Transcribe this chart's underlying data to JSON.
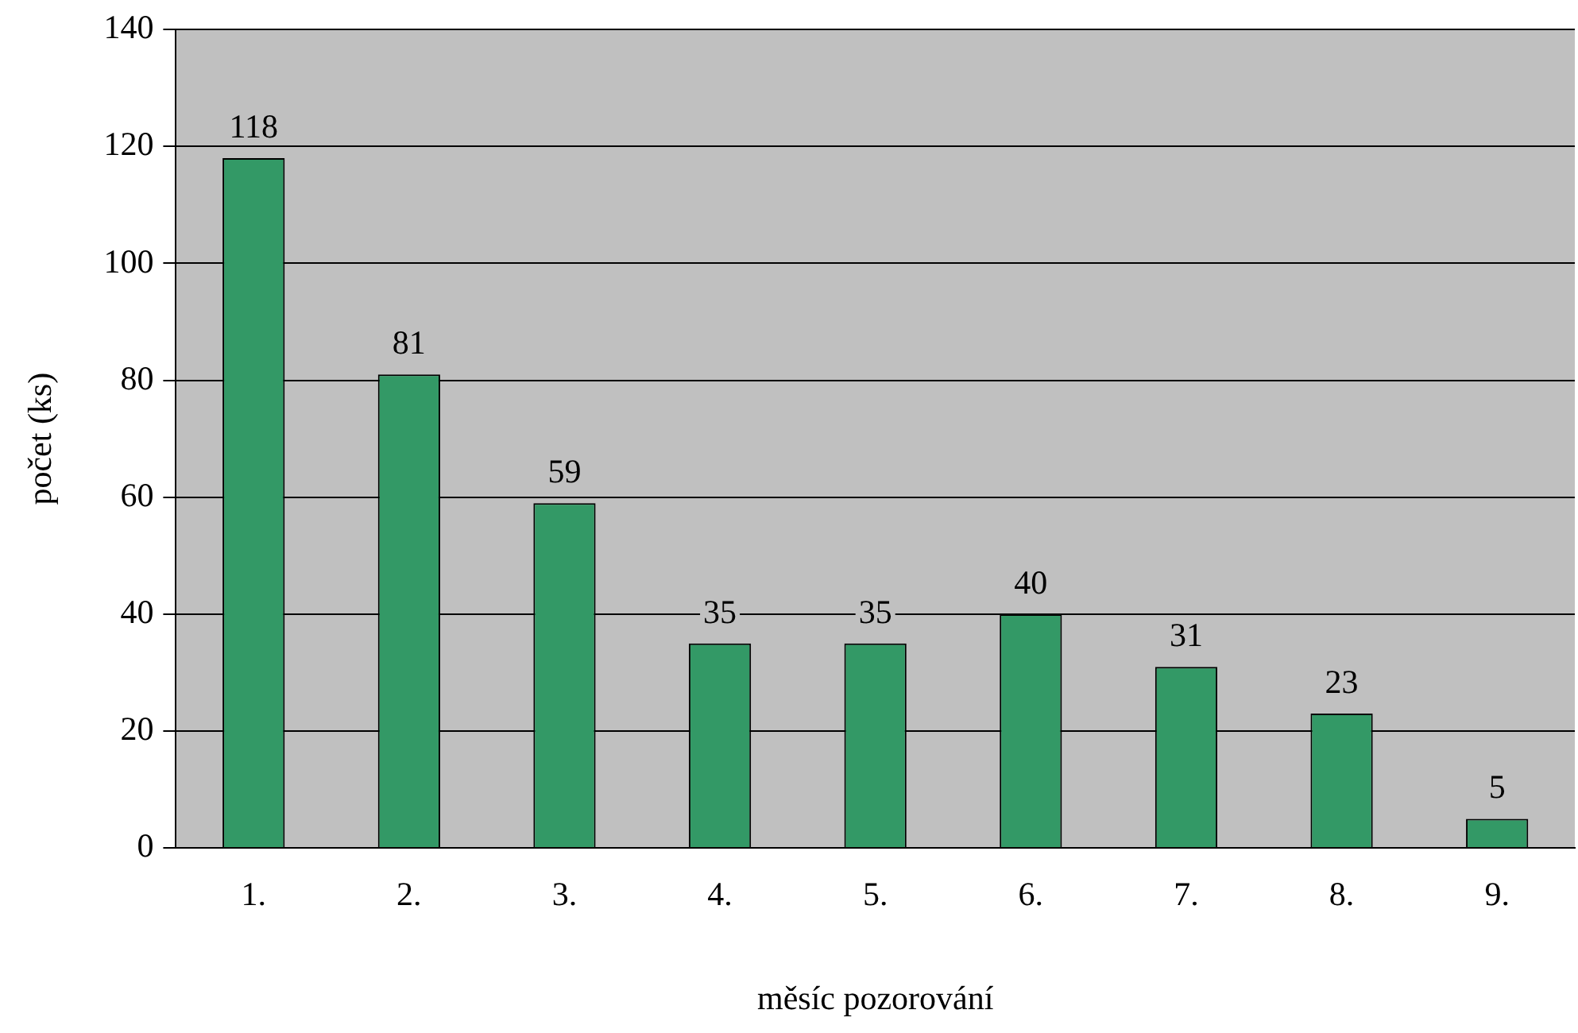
{
  "chart_data": {
    "type": "bar",
    "xlabel": "měsíc pozorování",
    "ylabel": "počet (ks)",
    "categories": [
      "1.",
      "2.",
      "3.",
      "4.",
      "5.",
      "6.",
      "7.",
      "8.",
      "9."
    ],
    "values": [
      118,
      81,
      59,
      35,
      35,
      40,
      31,
      23,
      5
    ],
    "color": "#339966",
    "ylim": [
      0,
      140
    ],
    "yticks": [
      0,
      20,
      40,
      60,
      80,
      100,
      120,
      140
    ],
    "grid": "y",
    "data_labels": true,
    "legend": false
  }
}
